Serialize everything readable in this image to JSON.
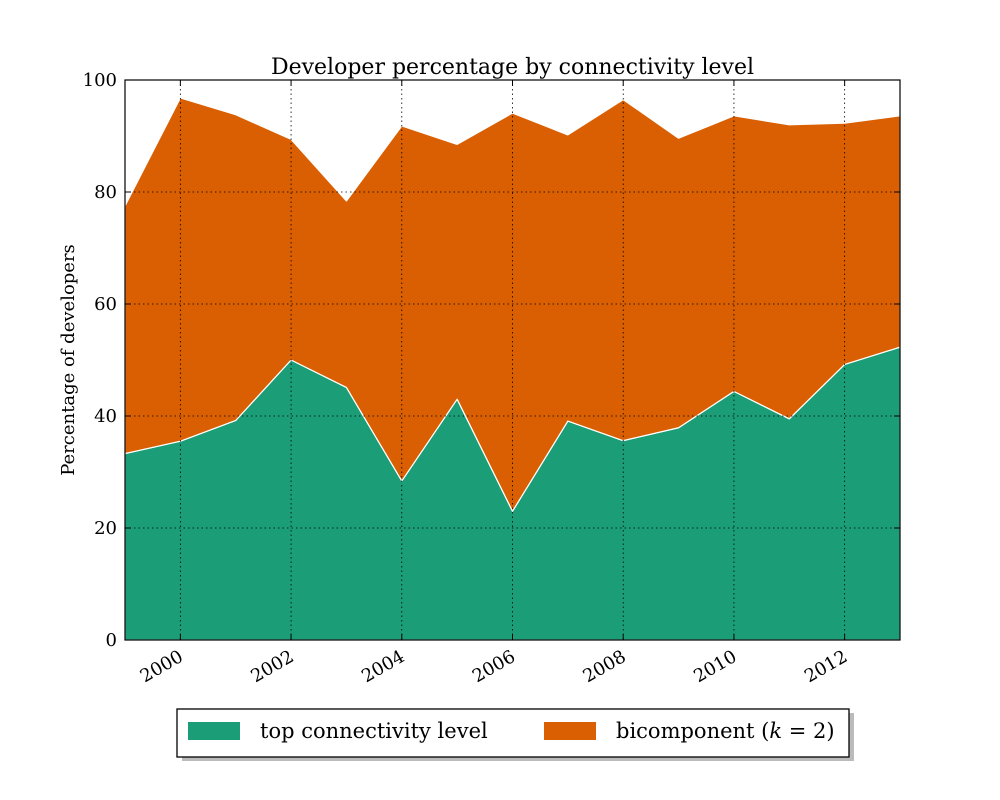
{
  "chart_data": {
    "type": "area",
    "stacked": true,
    "title": "Developer percentage by connectivity level",
    "xlabel": "",
    "ylabel": "Percentage of developers",
    "x": [
      1999,
      2000,
      2001,
      2002,
      2003,
      2004,
      2005,
      2006,
      2007,
      2008,
      2009,
      2010,
      2011,
      2012,
      2013
    ],
    "xlim": [
      1999,
      2013
    ],
    "ylim": [
      0,
      100
    ],
    "xticks": [
      2000,
      2002,
      2004,
      2006,
      2008,
      2010,
      2012
    ],
    "xtick_labels": [
      "2000",
      "2002",
      "2004",
      "2006",
      "2008",
      "2010",
      "2012"
    ],
    "yticks": [
      0,
      20,
      40,
      60,
      80,
      100
    ],
    "ytick_labels": [
      "0",
      "20",
      "40",
      "60",
      "80",
      "100"
    ],
    "grid": true,
    "legend_position": "bottom-center, below plot",
    "series": [
      {
        "name": "top connectivity level",
        "color": "#1b9e77",
        "values": [
          33.3,
          35.5,
          39.2,
          50.0,
          45.1,
          28.4,
          43.0,
          23.0,
          39.1,
          35.6,
          37.9,
          44.4,
          39.5,
          49.2,
          52.3
        ]
      },
      {
        "name": "bicomponent (k = 2)",
        "color": "#d95f02",
        "values": [
          44.2,
          61.3,
          54.6,
          39.4,
          33.3,
          63.4,
          45.5,
          71.1,
          51.1,
          60.9,
          51.7,
          49.2,
          52.5,
          43.1,
          41.3
        ]
      }
    ]
  },
  "legend": {
    "items": [
      {
        "label": "top connectivity level",
        "color": "#1b9e77"
      },
      {
        "label_prefix": "bicomponent (",
        "label_var": "k",
        "label_suffix": " = 2)",
        "color": "#d95f02"
      }
    ]
  }
}
